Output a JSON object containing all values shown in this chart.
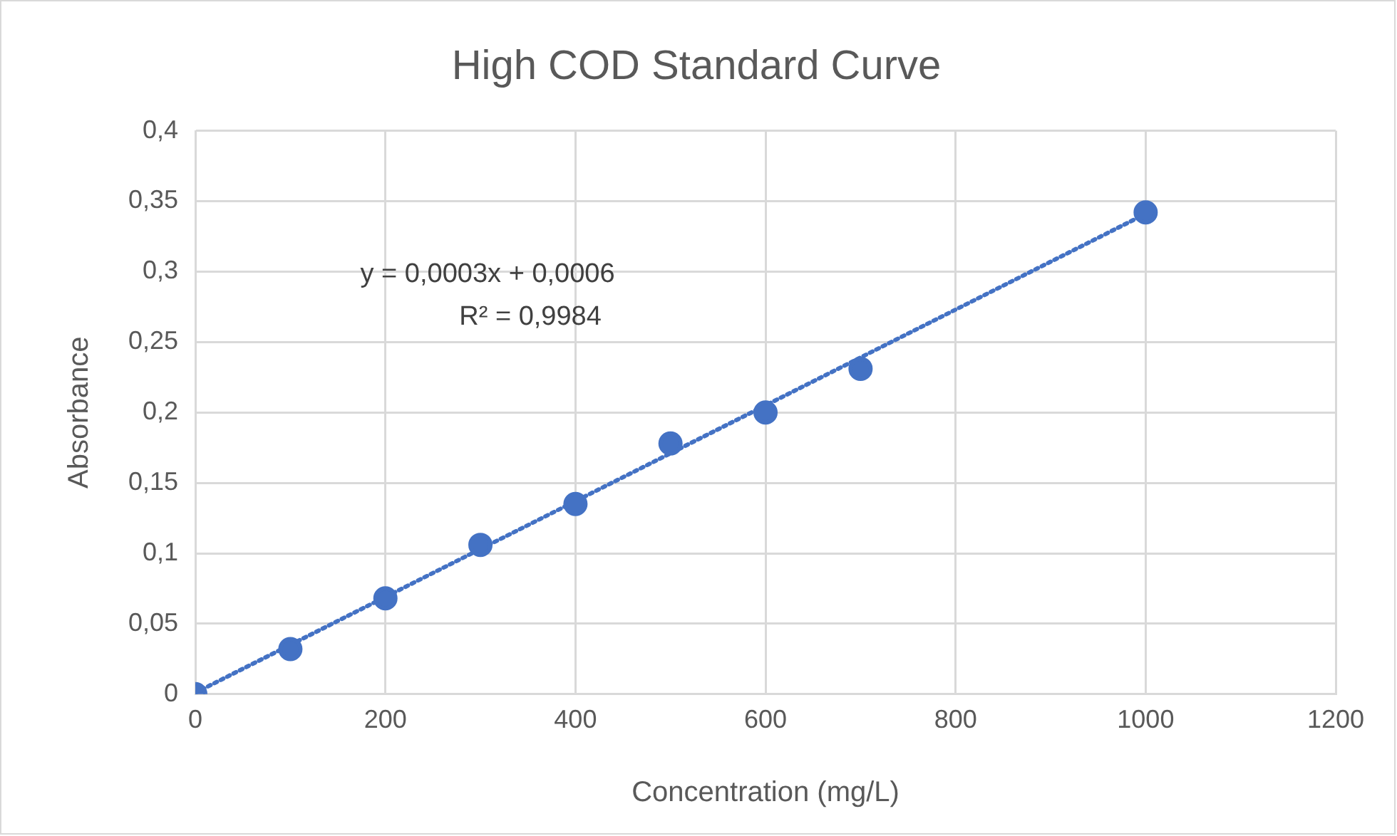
{
  "chart_data": {
    "type": "scatter",
    "title": "High COD Standard Curve",
    "xlabel": "Concentration (mg/L)",
    "ylabel": "Absorbance",
    "xlim": [
      0,
      1200
    ],
    "xticks": [
      0,
      200,
      400,
      600,
      800,
      1000,
      1200
    ],
    "ylim": [
      0,
      0.4
    ],
    "yticks": [
      0,
      {
        "value": 0.05,
        "label": "0,05"
      },
      {
        "value": 0.1,
        "label": "0,1"
      },
      {
        "value": 0.15,
        "label": "0,15"
      },
      {
        "value": 0.2,
        "label": "0,2"
      },
      {
        "value": 0.25,
        "label": "0,25"
      },
      {
        "value": 0.3,
        "label": "0,3"
      },
      {
        "value": 0.35,
        "label": "0,35"
      },
      {
        "value": 0.4,
        "label": "0,4"
      }
    ],
    "grid": true,
    "legend": false,
    "annotations": [
      "y = 0,0003x + 0,0006",
      "R² = 0,9984"
    ],
    "series": [
      {
        "type": "scatter",
        "color": "#4472c4",
        "marker": "circle",
        "x": [
          0,
          100,
          200,
          300,
          400,
          500,
          600,
          700,
          1000
        ],
        "values": [
          0,
          0.032,
          0.068,
          0.106,
          0.135,
          0.178,
          0.2,
          0.231,
          0.342
        ]
      },
      {
        "type": "line",
        "color": "#4472c4",
        "marker": "none",
        "line_style": "dotted",
        "x": [
          0,
          1000
        ],
        "values": [
          0.001,
          0.341
        ]
      }
    ]
  }
}
